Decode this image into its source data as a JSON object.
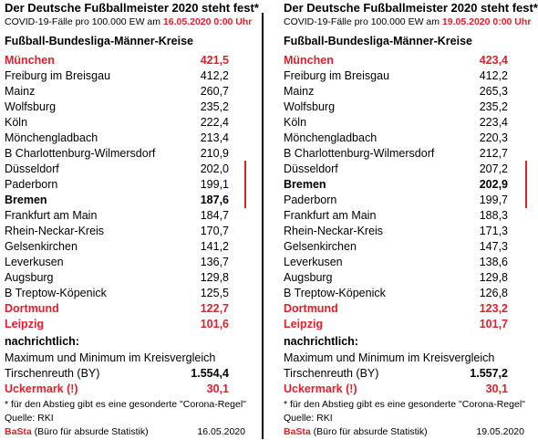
{
  "panels": [
    {
      "title": "Der Deutsche Fußballmeister 2020 steht fest*",
      "subtitle": "COVID-19-Fälle pro 100.000 EW am ",
      "subtitle_date": "16.05.2020 0:00 Uhr",
      "header": "Fußball-Bundesliga-Männer-Kreise",
      "rows": [
        {
          "name": "München",
          "value": "421,5",
          "style": "red"
        },
        {
          "name": "Freiburg im Breisgau",
          "value": "412,2",
          "style": "normal"
        },
        {
          "name": "Mainz",
          "value": "260,7",
          "style": "normal"
        },
        {
          "name": "Wolfsburg",
          "value": "235,2",
          "style": "normal"
        },
        {
          "name": "Köln",
          "value": "222,4",
          "style": "normal"
        },
        {
          "name": "Mönchengladbach",
          "value": "213,4",
          "style": "normal"
        },
        {
          "name": "B Charlottenburg-Wilmersdorf",
          "value": "210,9",
          "style": "normal"
        },
        {
          "name": "Düsseldorf",
          "value": "202,0",
          "style": "normal"
        },
        {
          "name": "Paderborn",
          "value": "199,1",
          "style": "normal"
        },
        {
          "name": "Bremen",
          "value": "187,6",
          "style": "bold"
        },
        {
          "name": "Frankfurt am Main",
          "value": "184,7",
          "style": "normal"
        },
        {
          "name": "Rhein-Neckar-Kreis",
          "value": "170,7",
          "style": "normal"
        },
        {
          "name": "Gelsenkirchen",
          "value": "141,2",
          "style": "normal"
        },
        {
          "name": "Leverkusen",
          "value": "136,7",
          "style": "normal"
        },
        {
          "name": "Augsburg",
          "value": "129,8",
          "style": "normal"
        },
        {
          "name": "B Treptow-Köpenick",
          "value": "125,5",
          "style": "normal"
        },
        {
          "name": "Dortmund",
          "value": "122,7",
          "style": "red"
        },
        {
          "name": "Leipzig",
          "value": "101,6",
          "style": "red"
        }
      ],
      "note_header": "nachrichtlich:",
      "note_text": "Maximum und Minimum im Kreisvergleich",
      "max": {
        "name": "Tirschenreuth (BY)",
        "value": "1.554,4"
      },
      "min": {
        "name": "Uckermark (!)",
        "value": "30,1"
      },
      "footnote": "* für den Abstieg gibt es eine gesonderte \"Corona-Regel\"",
      "source": "Quelle: RKI",
      "brand": "BaSta",
      "brand_text": " (Büro für absurde Statistik)",
      "date": "16.05.2020"
    },
    {
      "title": "Der Deutsche Fußballmeister 2020 steht fest*",
      "subtitle": "COVID-19-Fälle pro 100.000 EW am ",
      "subtitle_date": "19.05.2020 0:00 Uhr",
      "header": "Fußball-Bundesliga-Männer-Kreise",
      "rows": [
        {
          "name": "München",
          "value": "423,4",
          "style": "red"
        },
        {
          "name": "Freiburg im Breisgau",
          "value": "412,2",
          "style": "normal"
        },
        {
          "name": "Mainz",
          "value": "265,3",
          "style": "normal"
        },
        {
          "name": "Wolfsburg",
          "value": "235,2",
          "style": "normal"
        },
        {
          "name": "Köln",
          "value": "223,4",
          "style": "normal"
        },
        {
          "name": "Mönchengladbach",
          "value": "220,3",
          "style": "normal"
        },
        {
          "name": "B Charlottenburg-Wilmersdorf",
          "value": "212,7",
          "style": "normal"
        },
        {
          "name": "Düsseldorf",
          "value": "207,2",
          "style": "normal"
        },
        {
          "name": "Bremen",
          "value": "202,9",
          "style": "bold"
        },
        {
          "name": "Paderborn",
          "value": "199,7",
          "style": "normal"
        },
        {
          "name": "Frankfurt am Main",
          "value": "188,3",
          "style": "normal"
        },
        {
          "name": "Rhein-Neckar-Kreis",
          "value": "171,3",
          "style": "normal"
        },
        {
          "name": "Gelsenkirchen",
          "value": "147,3",
          "style": "normal"
        },
        {
          "name": "Leverkusen",
          "value": "138,6",
          "style": "normal"
        },
        {
          "name": "Augsburg",
          "value": "129,8",
          "style": "normal"
        },
        {
          "name": "B Treptow-Köpenick",
          "value": "126,8",
          "style": "normal"
        },
        {
          "name": "Dortmund",
          "value": "123,2",
          "style": "red"
        },
        {
          "name": "Leipzig",
          "value": "101,7",
          "style": "red"
        }
      ],
      "note_header": "nachrichtlich:",
      "note_text": "Maximum und Minimum im Kreisvergleich",
      "max": {
        "name": "Tirschenreuth (BY)",
        "value": "1.557,2"
      },
      "min": {
        "name": "Uckermark (!)",
        "value": "30,1"
      },
      "footnote": "* für den Abstieg gibt es eine gesonderte \"Corona-Regel\"",
      "source": "Quelle: RKI",
      "brand": "BaSta",
      "brand_text": " (Büro für absurde Statistik)",
      "date": "19.05.2020"
    }
  ]
}
